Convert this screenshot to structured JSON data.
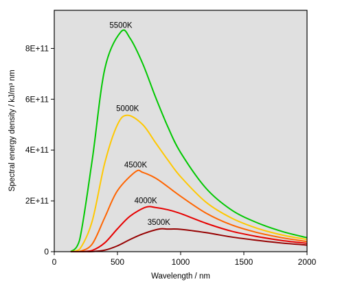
{
  "chart_data": {
    "type": "line",
    "xlabel": "Wavelength / nm",
    "ylabel": "Spectral energy density / kJ/m³ nm",
    "xlim": [
      0,
      2000
    ],
    "ylim": [
      0,
      950000000000
    ],
    "x_ticks": [
      0,
      500,
      1000,
      1500,
      2000
    ],
    "x_tick_labels": [
      "0",
      "500",
      "1000",
      "1500",
      "2000"
    ],
    "y_ticks": [
      0,
      200000000000,
      400000000000,
      600000000000,
      800000000000
    ],
    "y_tick_labels": [
      "0",
      "2E+11",
      "4E+11",
      "6E+11",
      "8E+11"
    ],
    "grid": false,
    "plot_background": "#e0e0e0",
    "x": [
      130,
      200,
      300,
      400,
      500,
      600,
      700,
      800,
      900,
      1000,
      1200,
      1400,
      1600,
      1800,
      2000
    ],
    "series": [
      {
        "name": "5500K",
        "color": "#00c800",
        "peak": [
          527,
          865000000000
        ],
        "values": [
          0,
          45000000000,
          360000000000,
          720000000000,
          860000000000,
          840000000000,
          740000000000,
          610000000000,
          490000000000,
          390000000000,
          250000000000,
          165000000000,
          115000000000,
          80000000000,
          55000000000
        ]
      },
      {
        "name": "5000K",
        "color": "#ffc800",
        "peak": [
          580,
          537000000000
        ],
        "values": [
          0,
          9000000000,
          120000000000,
          350000000000,
          500000000000,
          535000000000,
          500000000000,
          430000000000,
          360000000000,
          295000000000,
          195000000000,
          133000000000,
          93000000000,
          66000000000,
          48000000000
        ]
      },
      {
        "name": "4500K",
        "color": "#ff6400",
        "peak": [
          644,
          315000000000
        ],
        "values": [
          0,
          1000000000,
          30000000000,
          135000000000,
          240000000000,
          300000000000,
          312000000000,
          290000000000,
          255000000000,
          218000000000,
          152000000000,
          106000000000,
          76000000000,
          55000000000,
          40000000000
        ]
      },
      {
        "name": "4000K",
        "color": "#e60000",
        "peak": [
          724,
          175000000000
        ],
        "values": [
          0,
          0,
          5000000000,
          35000000000,
          90000000000,
          140000000000,
          170000000000,
          174000000000,
          165000000000,
          150000000000,
          112000000000,
          81000000000,
          60000000000,
          44000000000,
          33000000000
        ]
      },
      {
        "name": "3500K",
        "color": "#960000",
        "peak": [
          828,
          89000000000
        ],
        "values": [
          0,
          0,
          500000000,
          6000000000,
          23000000000,
          48000000000,
          70000000000,
          84000000000,
          89000000000,
          88000000000,
          75000000000,
          58000000000,
          45000000000,
          34000000000,
          26000000000
        ]
      }
    ]
  }
}
